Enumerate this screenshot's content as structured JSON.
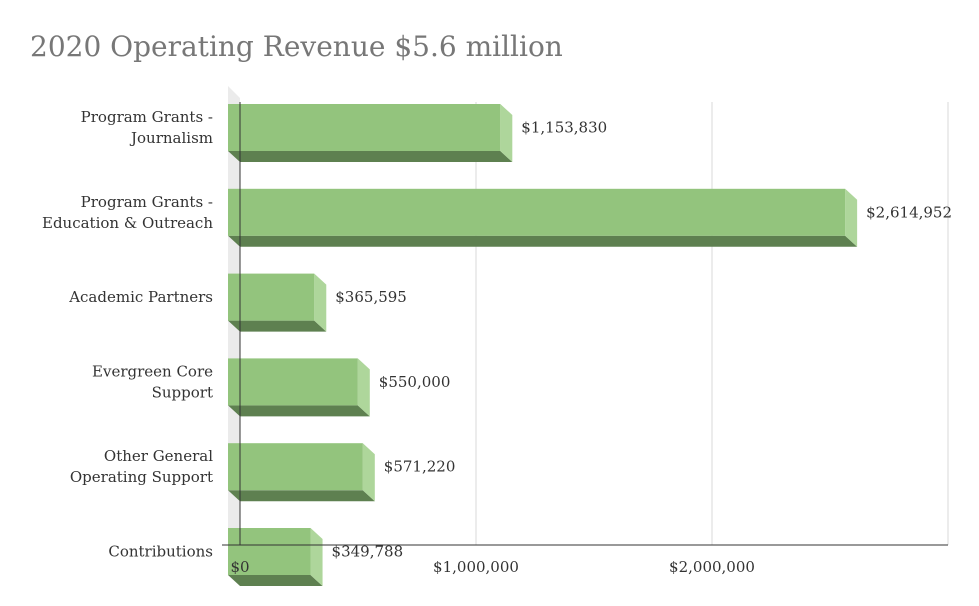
{
  "chart_data": {
    "type": "bar",
    "orientation": "horizontal",
    "style": "3d",
    "title": "2020 Operating Revenue $5.6 million",
    "categories": [
      [
        "Program Grants -",
        "Journalism"
      ],
      [
        "Program Grants -",
        "Education & Outreach"
      ],
      [
        "Academic Partners"
      ],
      [
        "Evergreen Core",
        "Support"
      ],
      [
        "Other General",
        "Operating Support"
      ],
      [
        "Contributions"
      ]
    ],
    "values": [
      1153830,
      2614952,
      365595,
      550000,
      571220,
      349788
    ],
    "value_labels": [
      "$1,153,830",
      "$2,614,952",
      "$365,595",
      "$550,000",
      "$571,220",
      "$349,788"
    ],
    "xlim": [
      0,
      3000000
    ],
    "xticks": [
      {
        "value": 0,
        "label": "$0"
      },
      {
        "value": 1000000,
        "label": "$1,000,000"
      },
      {
        "value": 2000000,
        "label": "$2,000,000"
      }
    ],
    "grid": true,
    "legend": "none",
    "colors": {
      "bar_face": "#93c47d",
      "bar_side": "#aed69b",
      "bar_bottom": "#5e8050",
      "grid": "#d9d9d9",
      "wall": "#ebebeb",
      "axis": "#333333",
      "title": "#777777",
      "text": "#333333"
    }
  }
}
